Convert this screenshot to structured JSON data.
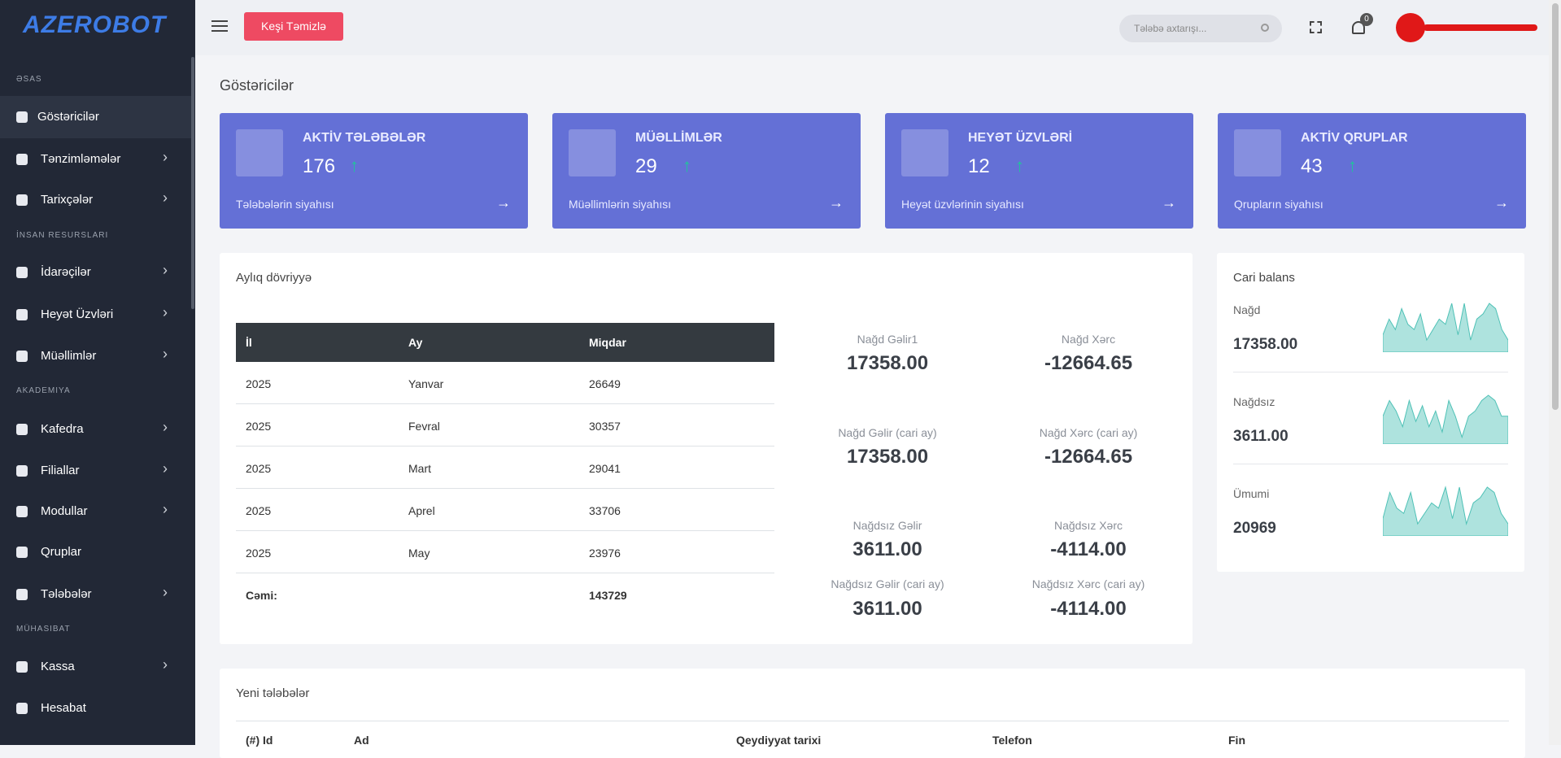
{
  "brand": "AZEROBOT",
  "sidebar": [
    {
      "section": "əsas",
      "items": [
        {
          "label": "Göstəricilər",
          "active": true
        },
        {
          "label": "Tənzimləmələr",
          "sub": true
        },
        {
          "label": "Tarixçələr",
          "sub": true
        }
      ]
    },
    {
      "section": "İnsan resursları",
      "items": [
        {
          "label": "İdarəçilər",
          "sub": true
        },
        {
          "label": "Heyət Üzvləri",
          "sub": true
        },
        {
          "label": "Müəllimlər",
          "sub": true
        }
      ]
    },
    {
      "section": "Akademiya",
      "items": [
        {
          "label": "Kafedra",
          "sub": true
        },
        {
          "label": "Filiallar",
          "sub": true
        },
        {
          "label": "Modullar",
          "sub": true
        },
        {
          "label": "Qruplar"
        },
        {
          "label": "Tələbələr",
          "sub": true
        }
      ]
    },
    {
      "section": "Mühasibat",
      "items": [
        {
          "label": "Kassa",
          "sub": true
        },
        {
          "label": "Hesabat"
        }
      ]
    }
  ],
  "topbar": {
    "button": "Keşi Təmizlə",
    "search": "Tələbə axtarışı...",
    "notifications": "0"
  },
  "page_title": "Göstəricilər",
  "cards": [
    {
      "title": "AKTİV TƏLƏBƏLƏR",
      "value": 176,
      "link": "Tələbələrin siyahısı"
    },
    {
      "title": "MÜƏLLİMLƏR",
      "value": 29,
      "link": "Müəllimlərin siyahısı"
    },
    {
      "title": "HEYƏT ÜZVLƏRİ",
      "value": 12,
      "link": "Heyət üzvlərinin siyahısı"
    },
    {
      "title": "AKTİV QRUPLAR",
      "value": 43,
      "link": "Qrupların siyahısı"
    }
  ],
  "turnover": {
    "title": "Aylıq dövriyyə",
    "headers": [
      "İl",
      "Ay",
      "Miqdar"
    ],
    "rows": [
      [
        "2025",
        "Yanvar",
        "26649"
      ],
      [
        "2025",
        "Fevral",
        "30357"
      ],
      [
        "2025",
        "Mart",
        "29041"
      ],
      [
        "2025",
        "Aprel",
        "33706"
      ],
      [
        "2025",
        "May",
        "23976"
      ]
    ],
    "total_label": "Cəmi:",
    "total": "143729",
    "stats": [
      {
        "label": "Nağd Gəlir1",
        "value": "17358.00"
      },
      {
        "label": "Nağd Xərc",
        "value": "-12664.65"
      },
      {
        "label": "Nağd Gəlir (cari ay)",
        "value": "17358.00"
      },
      {
        "label": "Nağd Xərc (cari ay)",
        "value": "-12664.65"
      },
      {
        "label": "Nağdsız Gəlir",
        "value": "3611.00"
      },
      {
        "label": "Nağdsız Xərc",
        "value": "-4114.00"
      },
      {
        "label": "Nağdsız Gəlir (cari ay)",
        "value": "3611.00"
      },
      {
        "label": "Nağdsız Xərc (cari ay)",
        "value": "-4114.00"
      }
    ]
  },
  "balance": {
    "title": "Cari balans",
    "items": [
      {
        "name": "Nağd",
        "value": "17358.00",
        "spark": [
          3,
          6,
          4,
          8,
          5,
          4,
          7,
          2,
          4,
          6,
          5,
          9,
          3,
          9,
          2,
          6,
          7,
          9,
          8,
          4,
          2
        ]
      },
      {
        "name": "Nağdsız",
        "value": "3611.00",
        "spark": [
          5,
          8,
          6,
          3,
          8,
          4,
          7,
          3,
          6,
          2,
          8,
          5,
          1,
          5,
          6,
          8,
          9,
          8,
          5,
          5
        ]
      },
      {
        "name": "Ümumi",
        "value": "20969",
        "spark": [
          3,
          8,
          5,
          4,
          8,
          2,
          4,
          6,
          5,
          9,
          3,
          9,
          2,
          6,
          7,
          9,
          8,
          4,
          2
        ]
      }
    ]
  },
  "new_students": {
    "title": "Yeni tələbələr",
    "headers": [
      "(#) Id",
      "Ad",
      "Qeydiyyat tarixi",
      "Telefon",
      "Fin"
    ]
  }
}
